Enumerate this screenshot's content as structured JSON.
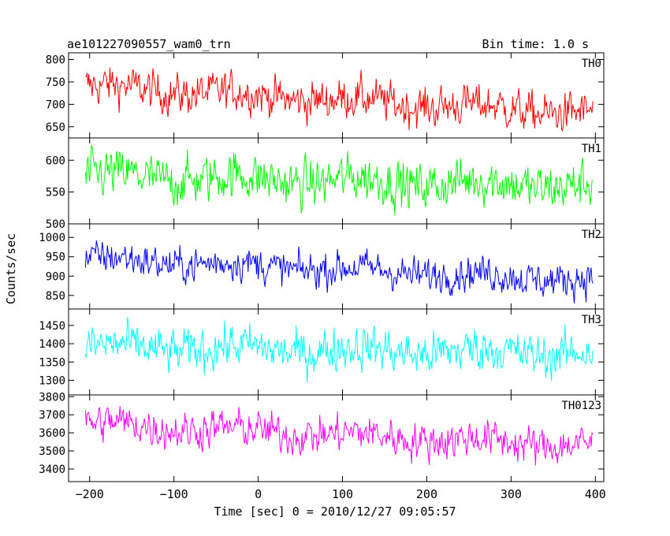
{
  "header": {
    "left_title": "ae101227090557_wam0_trn",
    "right_title": "Bin time: 1.0 s"
  },
  "chart_data": {
    "type": "line",
    "xlabel": "Time [sec] 0 = 2010/12/27 09:05:57",
    "ylabel": "Counts/sec",
    "xlim": [
      -225,
      410
    ],
    "xticks": [
      -200,
      -100,
      0,
      100,
      200,
      300,
      400
    ],
    "xtick_labels": [
      "−200",
      "−100",
      "0",
      "100",
      "200",
      "300",
      "400"
    ],
    "bin_time_s": 1.0,
    "grid": false,
    "panels": [
      {
        "name": "TH0",
        "color": "#ff0000",
        "ylim": [
          625,
          815
        ],
        "yticks": [
          650,
          700,
          750,
          800
        ],
        "x_range": [
          -205,
          397
        ],
        "mean_start": 740,
        "mean_end": 680,
        "noise": 30,
        "approx_values": [
          745,
          742,
          735,
          730,
          722,
          718,
          715,
          710,
          708,
          705,
          700,
          697,
          695,
          692,
          690,
          688,
          686,
          684,
          683,
          682
        ]
      },
      {
        "name": "TH1",
        "color": "#00ff00",
        "ylim": [
          500,
          635
        ],
        "yticks": [
          500,
          550,
          600
        ],
        "x_range": [
          -205,
          397
        ],
        "mean_start": 575,
        "mean_end": 560,
        "noise": 25,
        "approx_values": [
          578,
          576,
          575,
          574,
          572,
          571,
          570,
          569,
          568,
          567,
          566,
          565,
          564,
          563,
          563,
          562,
          561,
          561,
          560,
          560
        ]
      },
      {
        "name": "TH2",
        "color": "#0000ff",
        "ylim": [
          815,
          1035
        ],
        "yticks": [
          850,
          900,
          950,
          1000
        ],
        "x_range": [
          -205,
          397
        ],
        "mean_start": 945,
        "mean_end": 890,
        "noise": 30,
        "approx_values": [
          950,
          945,
          940,
          935,
          930,
          925,
          922,
          918,
          915,
          912,
          909,
          906,
          903,
          900,
          898,
          896,
          894,
          892,
          891,
          890
        ]
      },
      {
        "name": "TH3",
        "color": "#00ffff",
        "ylim": [
          1260,
          1495
        ],
        "yticks": [
          1300,
          1350,
          1400,
          1450
        ],
        "x_range": [
          -205,
          397
        ],
        "mean_start": 1390,
        "mean_end": 1375,
        "noise": 40,
        "approx_values": [
          1392,
          1390,
          1390,
          1388,
          1387,
          1386,
          1385,
          1384,
          1383,
          1382,
          1381,
          1380,
          1379,
          1378,
          1378,
          1377,
          1376,
          1376,
          1375,
          1375
        ]
      },
      {
        "name": "TH0123",
        "color": "#ff00ff",
        "ylim": [
          3330,
          3810
        ],
        "yticks": [
          3400,
          3500,
          3600,
          3700,
          3800
        ],
        "x_range": [
          -205,
          397
        ],
        "mean_start": 3650,
        "mean_end": 3530,
        "noise": 70,
        "approx_values": [
          3660,
          3650,
          3640,
          3630,
          3620,
          3610,
          3600,
          3592,
          3585,
          3578,
          3572,
          3566,
          3560,
          3555,
          3550,
          3545,
          3540,
          3537,
          3533,
          3530
        ]
      }
    ]
  }
}
